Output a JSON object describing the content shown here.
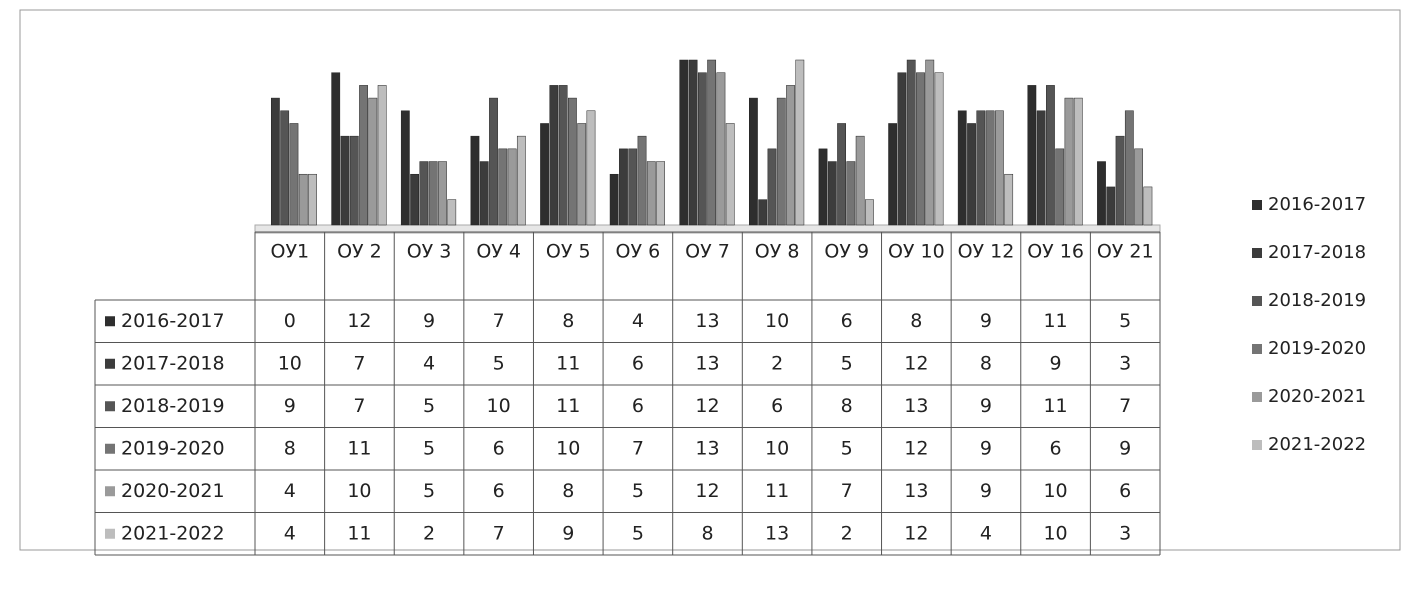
{
  "chart_data": {
    "type": "bar",
    "categories": [
      "ОУ1",
      "ОУ 2",
      "ОУ 3",
      "ОУ 4",
      "ОУ 5",
      "ОУ 6",
      "ОУ 7",
      "ОУ 8",
      "ОУ 9",
      "ОУ 10",
      "ОУ 12",
      "ОУ 16",
      "ОУ 21"
    ],
    "series": [
      {
        "name": "2016-2017",
        "color": "#2e2e2e",
        "values": [
          0,
          12,
          9,
          7,
          8,
          4,
          13,
          10,
          6,
          8,
          9,
          11,
          5
        ]
      },
      {
        "name": "2017-2018",
        "color": "#3c3c3c",
        "values": [
          10,
          7,
          4,
          5,
          11,
          6,
          13,
          2,
          5,
          12,
          8,
          9,
          3
        ]
      },
      {
        "name": "2018-2019",
        "color": "#555555",
        "values": [
          9,
          7,
          5,
          10,
          11,
          6,
          12,
          6,
          8,
          13,
          9,
          11,
          7
        ]
      },
      {
        "name": "2019-2020",
        "color": "#747474",
        "values": [
          8,
          11,
          5,
          6,
          10,
          7,
          13,
          10,
          5,
          12,
          9,
          6,
          9
        ]
      },
      {
        "name": "2020-2021",
        "color": "#9a9a9a",
        "values": [
          4,
          10,
          5,
          6,
          8,
          5,
          12,
          11,
          7,
          13,
          9,
          10,
          6
        ]
      },
      {
        "name": "2021-2022",
        "color": "#bdbdbd",
        "values": [
          4,
          11,
          2,
          7,
          9,
          5,
          8,
          13,
          2,
          12,
          4,
          10,
          3
        ]
      }
    ],
    "legend": "right"
  }
}
